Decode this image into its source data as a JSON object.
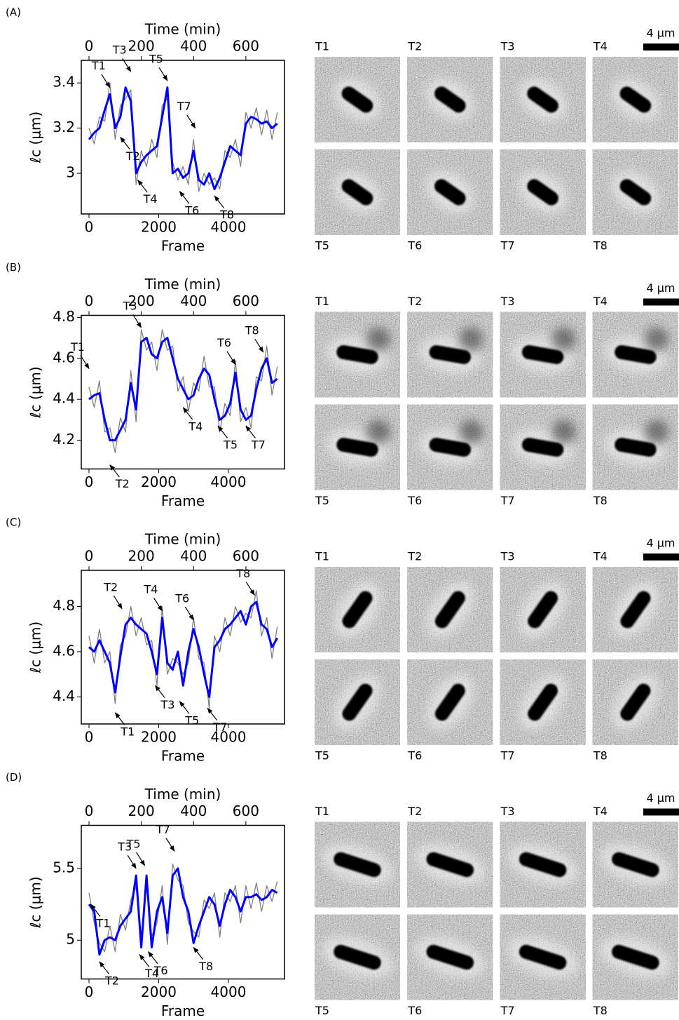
{
  "chart_data": [
    {
      "type": "line",
      "panel": "(A)",
      "xlabel": "Frame",
      "x2label": "Time (min)",
      "ylabel": "ℓc (μm)",
      "xlim": [
        -221,
        5608
      ],
      "xticks": [
        0,
        2000,
        4000
      ],
      "x2lim": [
        -29.5,
        747.7
      ],
      "x2ticks": [
        0,
        200,
        400,
        600
      ],
      "ylim": [
        2.82,
        3.5
      ],
      "yticks": [
        3.0,
        3.2,
        3.4
      ],
      "x": [
        0,
        150,
        300,
        450,
        600,
        750,
        900,
        1050,
        1200,
        1350,
        1500,
        1650,
        1800,
        1950,
        2100,
        2250,
        2400,
        2550,
        2700,
        2850,
        3000,
        3150,
        3300,
        3450,
        3600,
        3750,
        3900,
        4050,
        4200,
        4350,
        4500,
        4650,
        4800,
        4950,
        5100,
        5250,
        5400
      ],
      "series": [
        {
          "color": "#808080",
          "values": [
            3.2,
            3.13,
            3.25,
            3.23,
            3.4,
            3.15,
            3.3,
            3.33,
            3.37,
            2.95,
            3.1,
            3.03,
            3.15,
            3.07,
            3.3,
            3.33,
            3.05,
            2.97,
            3.03,
            2.95,
            3.15,
            2.92,
            3.0,
            2.95,
            2.98,
            2.93,
            3.1,
            3.07,
            3.15,
            3.03,
            3.27,
            3.2,
            3.29,
            3.17,
            3.28,
            3.15,
            3.27
          ]
        },
        {
          "color": "#0000ff",
          "values": [
            3.15,
            3.18,
            3.2,
            3.28,
            3.35,
            3.2,
            3.25,
            3.38,
            3.32,
            3.0,
            3.05,
            3.08,
            3.1,
            3.12,
            3.25,
            3.38,
            3.0,
            3.02,
            2.98,
            3.0,
            3.1,
            2.97,
            2.95,
            3.0,
            2.93,
            2.98,
            3.05,
            3.12,
            3.1,
            3.08,
            3.22,
            3.25,
            3.24,
            3.22,
            3.23,
            3.2,
            3.22
          ]
        }
      ],
      "annotations": [
        {
          "text": "T1",
          "x": 600,
          "y": 3.38
        },
        {
          "text": "T2",
          "x": 900,
          "y": 3.16
        },
        {
          "text": "T3",
          "x": 1200,
          "y": 3.45
        },
        {
          "text": "T4",
          "x": 1400,
          "y": 2.97
        },
        {
          "text": "T5",
          "x": 2250,
          "y": 3.41
        },
        {
          "text": "T6",
          "x": 2600,
          "y": 2.92
        },
        {
          "text": "T7",
          "x": 3050,
          "y": 3.2
        },
        {
          "text": "T8",
          "x": 3600,
          "y": 2.9
        }
      ],
      "image_labels": [
        "T1",
        "T2",
        "T3",
        "T4",
        "T5",
        "T6",
        "T7",
        "T8"
      ],
      "scale_label": "4 µm"
    },
    {
      "type": "line",
      "panel": "(B)",
      "xlabel": "Frame",
      "x2label": "Time (min)",
      "ylabel": "ℓc (μm)",
      "xlim": [
        -221,
        5608
      ],
      "xticks": [
        0,
        2000,
        4000
      ],
      "x2lim": [
        -29.5,
        747.7
      ],
      "x2ticks": [
        0,
        200,
        400,
        600
      ],
      "ylim": [
        4.06,
        4.81
      ],
      "yticks": [
        4.2,
        4.4,
        4.6,
        4.8
      ],
      "x": [
        0,
        150,
        300,
        450,
        600,
        750,
        900,
        1050,
        1200,
        1350,
        1500,
        1650,
        1800,
        1950,
        2100,
        2250,
        2400,
        2550,
        2700,
        2850,
        3000,
        3150,
        3300,
        3450,
        3600,
        3750,
        3900,
        4050,
        4200,
        4350,
        4500,
        4650,
        4800,
        4950,
        5100,
        5250,
        5400
      ],
      "series": [
        {
          "color": "#808080",
          "values": [
            4.46,
            4.36,
            4.49,
            4.24,
            4.26,
            4.14,
            4.31,
            4.24,
            4.54,
            4.29,
            4.74,
            4.64,
            4.68,
            4.54,
            4.74,
            4.64,
            4.66,
            4.44,
            4.51,
            4.34,
            4.48,
            4.44,
            4.61,
            4.46,
            4.46,
            4.24,
            4.38,
            4.32,
            4.59,
            4.29,
            4.36,
            4.26,
            4.51,
            4.49,
            4.66,
            4.42,
            4.56
          ]
        },
        {
          "color": "#0000ff",
          "values": [
            4.4,
            4.42,
            4.43,
            4.3,
            4.2,
            4.2,
            4.25,
            4.3,
            4.48,
            4.35,
            4.68,
            4.7,
            4.62,
            4.6,
            4.68,
            4.7,
            4.6,
            4.5,
            4.45,
            4.4,
            4.42,
            4.5,
            4.55,
            4.52,
            4.4,
            4.3,
            4.32,
            4.38,
            4.53,
            4.35,
            4.3,
            4.32,
            4.45,
            4.55,
            4.6,
            4.48,
            4.5
          ]
        }
      ],
      "annotations": [
        {
          "text": "T1",
          "x": 0,
          "y": 4.55
        },
        {
          "text": "T2",
          "x": 600,
          "y": 4.08
        },
        {
          "text": "T3",
          "x": 1500,
          "y": 4.75
        },
        {
          "text": "T4",
          "x": 2700,
          "y": 4.36
        },
        {
          "text": "T5",
          "x": 3700,
          "y": 4.27
        },
        {
          "text": "T6",
          "x": 4200,
          "y": 4.57
        },
        {
          "text": "T7",
          "x": 4500,
          "y": 4.27
        },
        {
          "text": "T8",
          "x": 5000,
          "y": 4.63
        }
      ],
      "image_labels": [
        "T1",
        "T2",
        "T3",
        "T4",
        "T5",
        "T6",
        "T7",
        "T8"
      ],
      "scale_label": "4 µm"
    },
    {
      "type": "line",
      "panel": "(C)",
      "xlabel": "Frame",
      "x2label": "Time (min)",
      "ylabel": "ℓc (μm)",
      "xlim": [
        -221,
        5608
      ],
      "xticks": [
        0,
        2000,
        4000
      ],
      "x2lim": [
        -29.5,
        747.7
      ],
      "x2ticks": [
        0,
        200,
        400,
        600
      ],
      "ylim": [
        4.28,
        4.96
      ],
      "yticks": [
        4.4,
        4.6,
        4.8
      ],
      "x": [
        0,
        150,
        300,
        450,
        600,
        750,
        900,
        1050,
        1200,
        1350,
        1500,
        1650,
        1800,
        1950,
        2100,
        2250,
        2400,
        2550,
        2700,
        2850,
        3000,
        3150,
        3300,
        3450,
        3600,
        3750,
        3900,
        4050,
        4200,
        4350,
        4500,
        4650,
        4800,
        4950,
        5100,
        5250,
        5400
      ],
      "series": [
        {
          "color": "#808080",
          "values": [
            4.67,
            4.55,
            4.7,
            4.55,
            4.6,
            4.37,
            4.63,
            4.67,
            4.8,
            4.67,
            4.75,
            4.63,
            4.65,
            4.45,
            4.8,
            4.5,
            4.57,
            4.55,
            4.5,
            4.55,
            4.75,
            4.57,
            4.55,
            4.35,
            4.67,
            4.6,
            4.75,
            4.67,
            4.8,
            4.73,
            4.77,
            4.75,
            4.87,
            4.67,
            4.75,
            4.57,
            4.71
          ]
        },
        {
          "color": "#0000ff",
          "values": [
            4.62,
            4.6,
            4.65,
            4.6,
            4.55,
            4.42,
            4.58,
            4.72,
            4.75,
            4.72,
            4.7,
            4.68,
            4.6,
            4.5,
            4.75,
            4.55,
            4.52,
            4.6,
            4.45,
            4.6,
            4.7,
            4.62,
            4.5,
            4.4,
            4.62,
            4.65,
            4.7,
            4.72,
            4.75,
            4.78,
            4.72,
            4.8,
            4.82,
            4.72,
            4.7,
            4.62,
            4.66
          ]
        }
      ],
      "annotations": [
        {
          "text": "T1",
          "x": 750,
          "y": 4.33
        },
        {
          "text": "T2",
          "x": 950,
          "y": 4.79
        },
        {
          "text": "T3",
          "x": 1900,
          "y": 4.45
        },
        {
          "text": "T4",
          "x": 2100,
          "y": 4.78
        },
        {
          "text": "T5",
          "x": 2600,
          "y": 4.38
        },
        {
          "text": "T6",
          "x": 3000,
          "y": 4.74
        },
        {
          "text": "T7",
          "x": 3400,
          "y": 4.35
        },
        {
          "text": "T8",
          "x": 4750,
          "y": 4.85
        }
      ],
      "image_labels": [
        "T1",
        "T2",
        "T3",
        "T4",
        "T5",
        "T6",
        "T7",
        "T8"
      ],
      "scale_label": "4 µm"
    },
    {
      "type": "line",
      "panel": "(D)",
      "xlabel": "Frame",
      "x2label": "Time (min)",
      "ylabel": "ℓc (μm)",
      "xlim": [
        -221,
        5608
      ],
      "xticks": [
        0,
        2000,
        4000
      ],
      "x2lim": [
        -29.5,
        747.7
      ],
      "x2ticks": [
        0,
        200,
        400,
        600
      ],
      "ylim": [
        4.73,
        5.8
      ],
      "yticks": [
        5.0,
        5.5
      ],
      "x": [
        0,
        150,
        300,
        450,
        600,
        750,
        900,
        1050,
        1200,
        1350,
        1500,
        1650,
        1800,
        1950,
        2100,
        2250,
        2400,
        2550,
        2700,
        2850,
        3000,
        3150,
        3300,
        3450,
        3600,
        3750,
        3900,
        4050,
        4200,
        4350,
        4500,
        4650,
        4800,
        4950,
        5100,
        5250,
        5400
      ],
      "series": [
        {
          "color": "#808080",
          "values": [
            5.33,
            5.12,
            4.98,
            4.92,
            5.1,
            4.92,
            5.18,
            5.07,
            5.28,
            5.37,
            5.03,
            5.37,
            5.03,
            5.12,
            5.38,
            4.97,
            5.53,
            5.42,
            5.38,
            5.12,
            5.06,
            5.02,
            5.28,
            5.22,
            5.33,
            5.02,
            5.33,
            5.27,
            5.38,
            5.12,
            5.38,
            5.22,
            5.4,
            5.2,
            5.38,
            5.27,
            5.41
          ]
        },
        {
          "color": "#0000ff",
          "values": [
            5.25,
            5.2,
            4.9,
            5.0,
            5.02,
            5.0,
            5.1,
            5.15,
            5.2,
            5.45,
            4.95,
            5.45,
            4.95,
            5.2,
            5.3,
            5.05,
            5.45,
            5.5,
            5.3,
            5.2,
            4.98,
            5.1,
            5.2,
            5.3,
            5.25,
            5.1,
            5.25,
            5.35,
            5.3,
            5.2,
            5.3,
            5.3,
            5.32,
            5.28,
            5.3,
            5.35,
            5.33
          ]
        }
      ],
      "annotations": [
        {
          "text": "T1",
          "x": 50,
          "y": 5.25
        },
        {
          "text": "T2",
          "x": 300,
          "y": 4.85
        },
        {
          "text": "T3",
          "x": 1350,
          "y": 5.5
        },
        {
          "text": "T4",
          "x": 1450,
          "y": 4.9
        },
        {
          "text": "T5",
          "x": 1600,
          "y": 5.52
        },
        {
          "text": "T6",
          "x": 1700,
          "y": 4.92
        },
        {
          "text": "T7",
          "x": 2450,
          "y": 5.62
        },
        {
          "text": "T8",
          "x": 3000,
          "y": 4.95
        }
      ],
      "image_labels": [
        "T1",
        "T2",
        "T3",
        "T4",
        "T5",
        "T6",
        "T7",
        "T8"
      ],
      "scale_label": "4 µm"
    }
  ]
}
